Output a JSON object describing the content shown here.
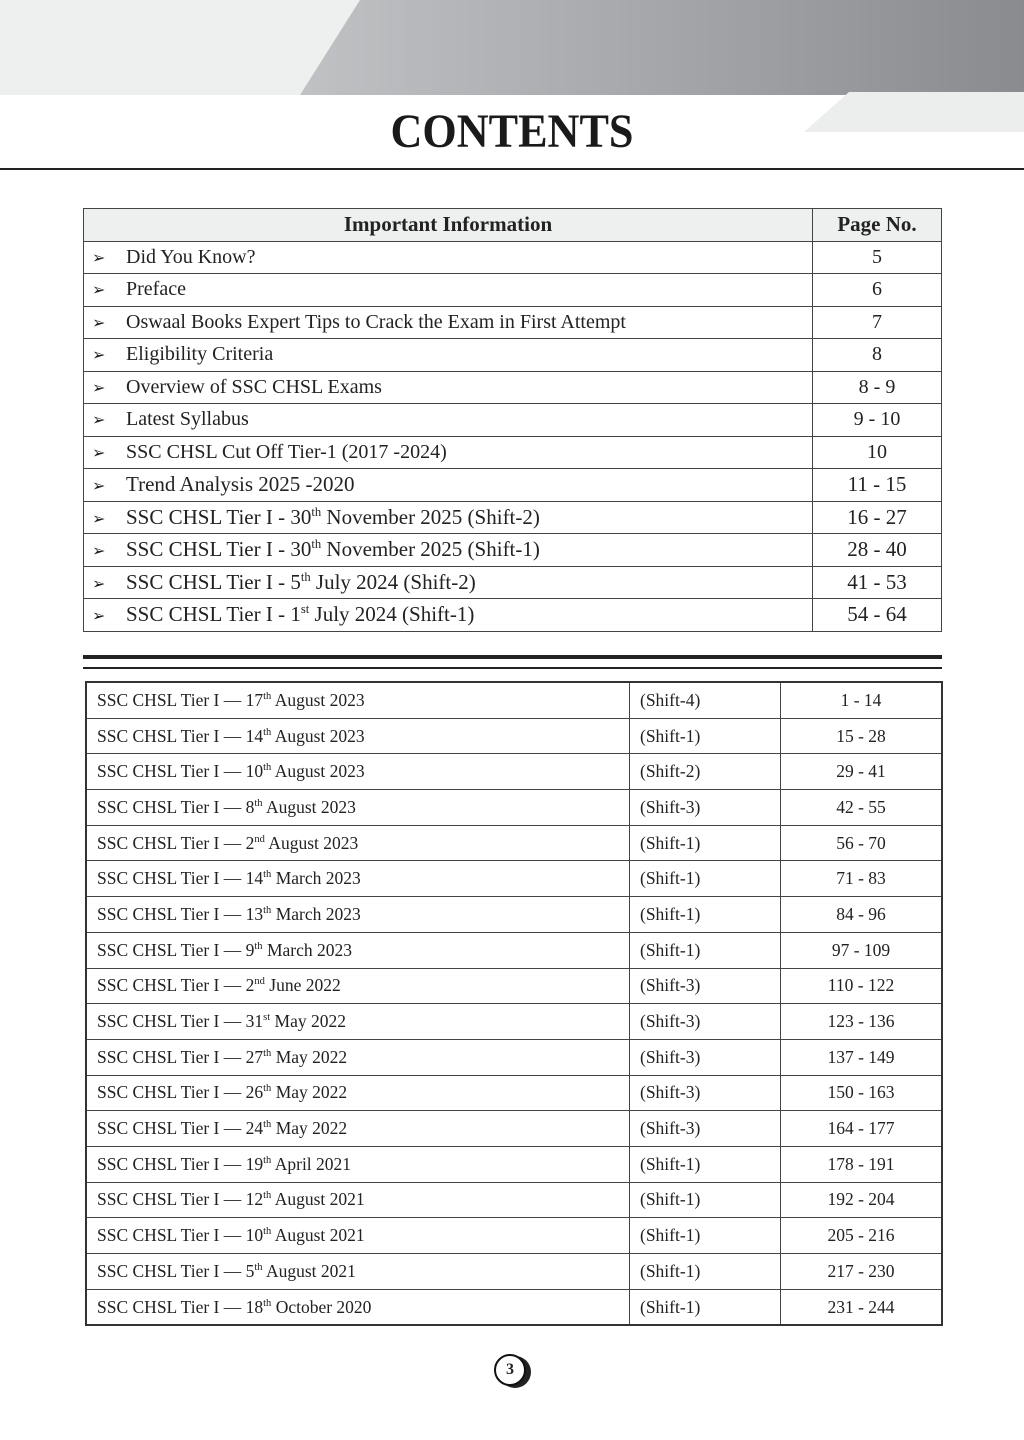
{
  "title": "CONTENTS",
  "important": {
    "header": {
      "col1": "Important Information",
      "col2": "Page No."
    },
    "bullet_icon": "arrowhead-right-icon",
    "rows": [
      {
        "pre": "Did You Know?",
        "sup": "",
        "post": "",
        "pages": "5"
      },
      {
        "pre": "Preface",
        "sup": "",
        "post": "",
        "pages": "6"
      },
      {
        "pre": "Oswaal Books Expert Tips to Crack the Exam in First Attempt",
        "sup": "",
        "post": "",
        "pages": "7"
      },
      {
        "pre": "Eligibility Criteria",
        "sup": "",
        "post": "",
        "pages": "8"
      },
      {
        "pre": "Overview of SSC CHSL Exams",
        "sup": "",
        "post": "",
        "pages": "8 - 9"
      },
      {
        "pre": "Latest Syllabus",
        "sup": "",
        "post": "",
        "pages": "9 - 10"
      },
      {
        "pre": "SSC CHSL Cut Off Tier-1 (2017 -2024)",
        "sup": "",
        "post": "",
        "pages": "10"
      },
      {
        "pre": "Trend Analysis 2025 -2020",
        "sup": "",
        "post": "",
        "pages": "11 - 15"
      },
      {
        "pre": "SSC CHSL Tier I - 30",
        "sup": "th",
        "post": " November 2025 (Shift-2)",
        "pages": "16 - 27"
      },
      {
        "pre": "SSC CHSL Tier I - 30",
        "sup": "th",
        "post": " November 2025 (Shift-1)",
        "pages": "28 - 40"
      },
      {
        "pre": "SSC CHSL Tier I - 5",
        "sup": "th",
        "post": " July 2024 (Shift-2)",
        "pages": "41 - 53"
      },
      {
        "pre": "SSC CHSL Tier I - 1",
        "sup": "st",
        "post": " July 2024 (Shift-1)",
        "pages": "54 - 64"
      }
    ]
  },
  "papers": [
    {
      "pre": "SSC CHSL Tier I — 17",
      "sup": "th",
      "post": " August 2023",
      "shift": "(Shift-4)",
      "pages": "1 - 14"
    },
    {
      "pre": "SSC CHSL Tier I — 14",
      "sup": "th",
      "post": " August 2023",
      "shift": "(Shift-1)",
      "pages": "15 - 28"
    },
    {
      "pre": "SSC CHSL Tier I — 10",
      "sup": "th",
      "post": " August 2023",
      "shift": "(Shift-2)",
      "pages": "29 - 41"
    },
    {
      "pre": "SSC CHSL Tier I — 8",
      "sup": "th",
      "post": " August 2023",
      "shift": "(Shift-3)",
      "pages": "42 - 55"
    },
    {
      "pre": "SSC CHSL Tier I — 2",
      "sup": "nd",
      "post": " August 2023",
      "shift": "(Shift-1)",
      "pages": "56 - 70"
    },
    {
      "pre": "SSC CHSL Tier I — 14",
      "sup": "th",
      "post": " March 2023",
      "shift": "(Shift-1)",
      "pages": "71 - 83"
    },
    {
      "pre": "SSC CHSL Tier I — 13",
      "sup": "th",
      "post": " March 2023",
      "shift": "(Shift-1)",
      "pages": "84 - 96"
    },
    {
      "pre": "SSC CHSL Tier I — 9",
      "sup": "th",
      "post": " March 2023",
      "shift": "(Shift-1)",
      "pages": "97 - 109"
    },
    {
      "pre": "SSC CHSL Tier I — 2",
      "sup": "nd",
      "post": " June 2022",
      "shift": "(Shift-3)",
      "pages": "110 - 122"
    },
    {
      "pre": "SSC CHSL Tier I — 31",
      "sup": "st",
      "post": " May 2022",
      "shift": "(Shift-3)",
      "pages": "123 - 136"
    },
    {
      "pre": "SSC CHSL Tier I — 27",
      "sup": "th",
      "post": " May 2022",
      "shift": "(Shift-3)",
      "pages": "137 - 149"
    },
    {
      "pre": "SSC CHSL Tier I — 26",
      "sup": "th",
      "post": " May 2022",
      "shift": "(Shift-3)",
      "pages": "150 - 163"
    },
    {
      "pre": "SSC CHSL Tier I — 24",
      "sup": "th",
      "post": " May 2022",
      "shift": "(Shift-3)",
      "pages": "164 - 177"
    },
    {
      "pre": "SSC CHSL Tier I — 19",
      "sup": "th",
      "post": " April 2021",
      "shift": "(Shift-1)",
      "pages": "178 - 191"
    },
    {
      "pre": "SSC CHSL Tier I — 12",
      "sup": "th",
      "post": " August 2021",
      "shift": "(Shift-1)",
      "pages": "192 - 204"
    },
    {
      "pre": "SSC CHSL Tier I — 10",
      "sup": "th",
      "post": " August 2021",
      "shift": "(Shift-1)",
      "pages": "205 - 216"
    },
    {
      "pre": "SSC CHSL Tier I — 5",
      "sup": "th",
      "post": " August 2021",
      "shift": "(Shift-1)",
      "pages": "217 - 230"
    },
    {
      "pre": "SSC CHSL Tier I — 18",
      "sup": "th",
      "post": " October 2020",
      "shift": "(Shift-1)",
      "pages": "231 - 244"
    }
  ],
  "page_number": "3"
}
